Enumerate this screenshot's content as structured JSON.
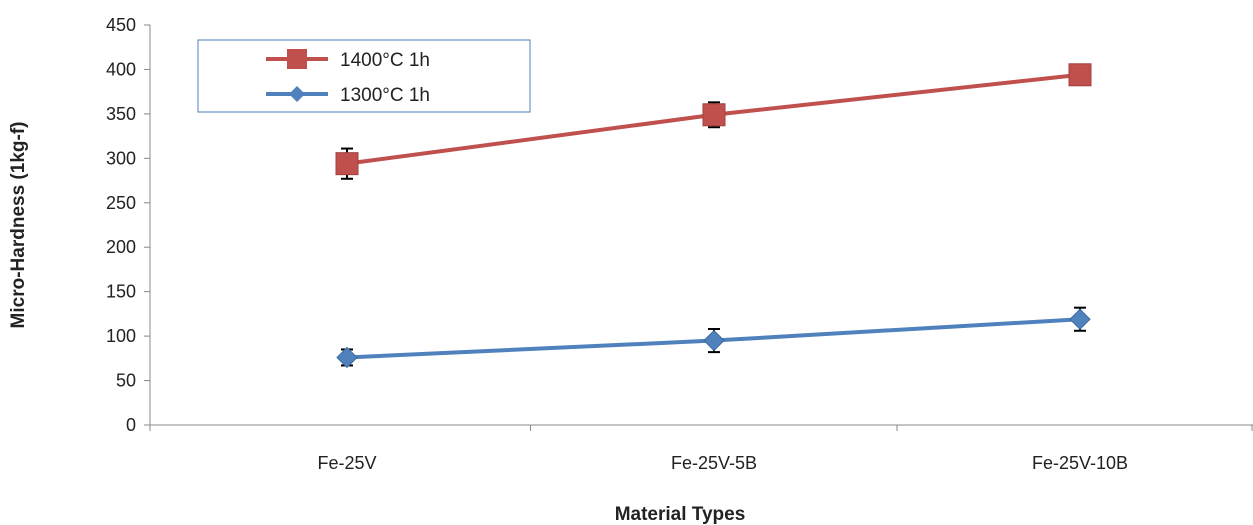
{
  "chart_data": {
    "type": "line",
    "title": "",
    "xlabel": "Material Types",
    "ylabel": "Micro-Hardness (1kg-f)",
    "categories": [
      "Fe-25V",
      "Fe-25V-5B",
      "Fe-25V-10B"
    ],
    "ylim": [
      0,
      450
    ],
    "yticks": [
      0,
      50,
      100,
      150,
      200,
      250,
      300,
      350,
      400,
      450
    ],
    "grid": false,
    "legend_position": "top-left",
    "series": [
      {
        "name": "1400°C 1h",
        "values": [
          294,
          349,
          394
        ],
        "errors": [
          17,
          14,
          0
        ],
        "marker": "square",
        "color": "#c0504d"
      },
      {
        "name": "1300°C 1h",
        "values": [
          76,
          95,
          119
        ],
        "errors": [
          9,
          13,
          13
        ],
        "marker": "diamond",
        "color": "#4f81bd"
      }
    ]
  }
}
